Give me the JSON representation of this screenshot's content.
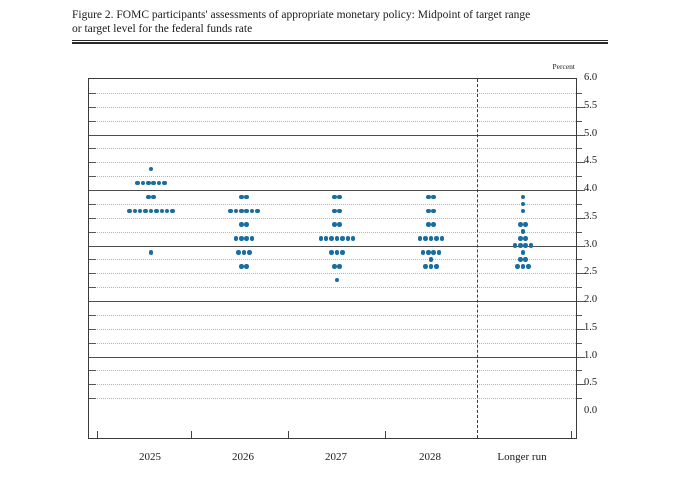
{
  "figure": {
    "title_line1": "Figure 2. FOMC participants' assessments of appropriate monetary policy: Midpoint of target range",
    "title_line2": "or target level for the federal funds rate"
  },
  "chart_data": {
    "type": "scatter",
    "subtype": "fomc-dot-plot",
    "title": "FOMC participants' assessments of appropriate monetary policy: Midpoint of target range or target level for the federal funds rate",
    "unit_label": "Percent",
    "y_axis": {
      "min": 0.0,
      "max": 6.0,
      "grid_step": 0.25,
      "label_step": 0.5,
      "labels": [
        "6.0",
        "5.5",
        "5.0",
        "4.5",
        "4.0",
        "3.5",
        "3.0",
        "2.5",
        "2.0",
        "1.5",
        "1.0",
        "0.5",
        "0.0"
      ],
      "solid_lines_at_integers": true,
      "dotted_lines_at_quarters": true
    },
    "x_categories": [
      "2025",
      "2026",
      "2027",
      "2028",
      "Longer run"
    ],
    "separator_before_category": "Longer run",
    "dot_color": "#1a6d9e",
    "series": [
      {
        "category": "2025",
        "dots": [
          {
            "rate": 4.375,
            "count": 1
          },
          {
            "rate": 4.125,
            "count": 6
          },
          {
            "rate": 3.875,
            "count": 2
          },
          {
            "rate": 3.625,
            "count": 9
          },
          {
            "rate": 2.875,
            "count": 1
          }
        ]
      },
      {
        "category": "2026",
        "dots": [
          {
            "rate": 3.875,
            "count": 2
          },
          {
            "rate": 3.625,
            "count": 6
          },
          {
            "rate": 3.375,
            "count": 2
          },
          {
            "rate": 3.125,
            "count": 4
          },
          {
            "rate": 2.875,
            "count": 3
          },
          {
            "rate": 2.625,
            "count": 2
          }
        ]
      },
      {
        "category": "2027",
        "dots": [
          {
            "rate": 3.875,
            "count": 2
          },
          {
            "rate": 3.625,
            "count": 2
          },
          {
            "rate": 3.375,
            "count": 2
          },
          {
            "rate": 3.125,
            "count": 7
          },
          {
            "rate": 2.875,
            "count": 3
          },
          {
            "rate": 2.625,
            "count": 2
          },
          {
            "rate": 2.375,
            "count": 1
          }
        ]
      },
      {
        "category": "2028",
        "dots": [
          {
            "rate": 3.875,
            "count": 2
          },
          {
            "rate": 3.625,
            "count": 2
          },
          {
            "rate": 3.375,
            "count": 2
          },
          {
            "rate": 3.125,
            "count": 5
          },
          {
            "rate": 2.875,
            "count": 4
          },
          {
            "rate": 2.75,
            "count": 1
          },
          {
            "rate": 2.625,
            "count": 3
          }
        ]
      },
      {
        "category": "Longer run",
        "dots": [
          {
            "rate": 3.875,
            "count": 1
          },
          {
            "rate": 3.75,
            "count": 1
          },
          {
            "rate": 3.625,
            "count": 1
          },
          {
            "rate": 3.375,
            "count": 2
          },
          {
            "rate": 3.25,
            "count": 1
          },
          {
            "rate": 3.125,
            "count": 2
          },
          {
            "rate": 3.0,
            "count": 4
          },
          {
            "rate": 2.875,
            "count": 1
          },
          {
            "rate": 2.75,
            "count": 2
          },
          {
            "rate": 2.625,
            "count": 3
          }
        ]
      }
    ]
  }
}
